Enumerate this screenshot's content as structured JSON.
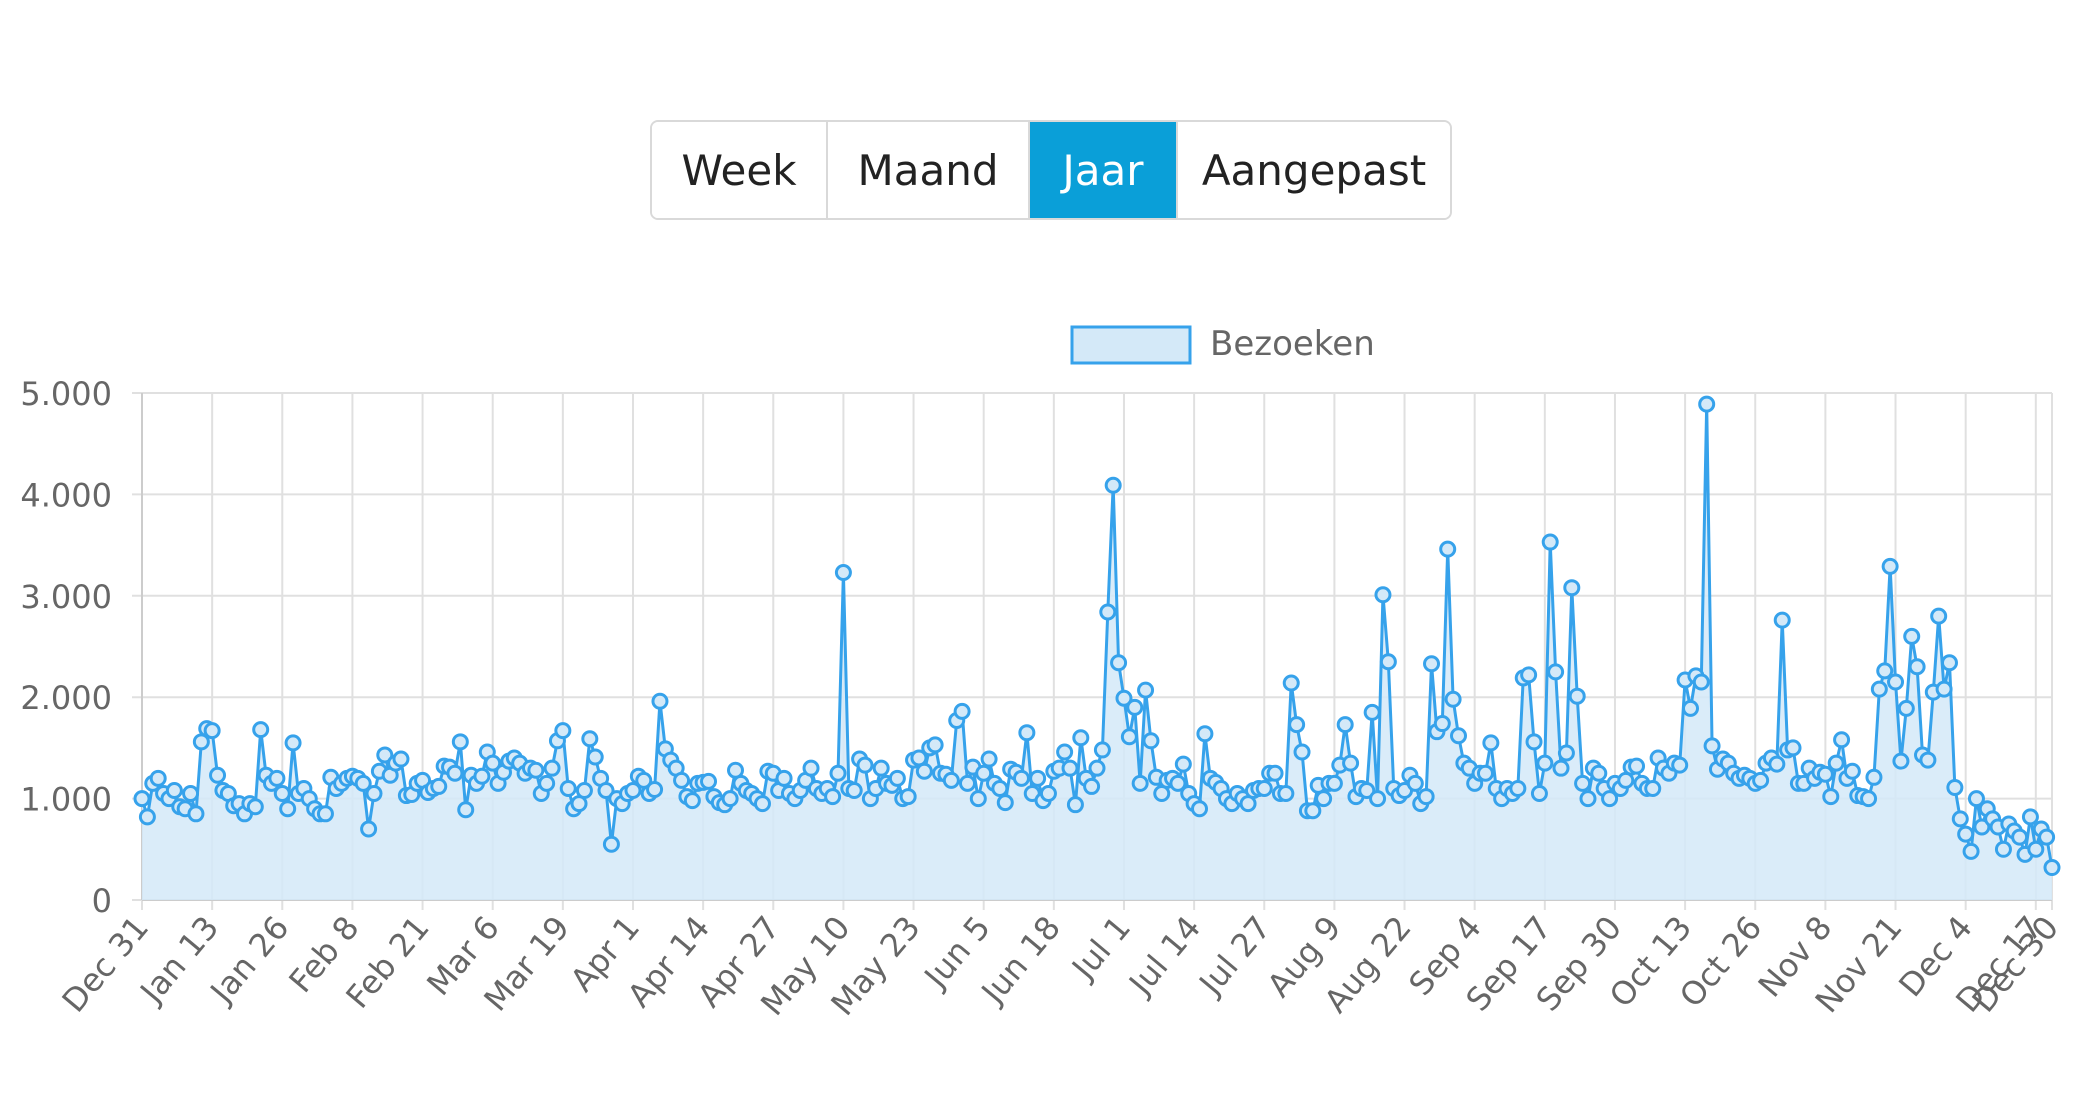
{
  "range_selector": {
    "buttons": [
      {
        "label": "Week",
        "active": false
      },
      {
        "label": "Maand",
        "active": false
      },
      {
        "label": "Jaar",
        "active": true
      },
      {
        "label": "Aangepast",
        "active": false
      }
    ],
    "active_color": "#0a9fd8"
  },
  "chart_data": {
    "type": "area",
    "title": "",
    "xlabel": "",
    "ylabel": "",
    "ylim": [
      0,
      5000
    ],
    "y_ticks": [
      0,
      1000,
      2000,
      3000,
      4000,
      5000
    ],
    "y_tick_labels": [
      "0",
      "1.000",
      "2.000",
      "3.000",
      "4.000",
      "5.000"
    ],
    "x_tick_labels": [
      "Dec 31",
      "Jan 13",
      "Jan 26",
      "Feb 8",
      "Feb 21",
      "Mar 6",
      "Mar 19",
      "Apr 1",
      "Apr 14",
      "Apr 27",
      "May 10",
      "May 23",
      "Jun 5",
      "Jun 18",
      "Jul 1",
      "Jul 14",
      "Jul 27",
      "Aug 9",
      "Aug 22",
      "Sep 4",
      "Sep 17",
      "Sep 30",
      "Oct 13",
      "Oct 26",
      "Nov 8",
      "Nov 21",
      "Dec 4",
      "Dec 17",
      "Dec 30"
    ],
    "x_tick_step_days": 13,
    "legend": {
      "label": "Bezoeken",
      "position": "top"
    },
    "colors": {
      "line": "#36a2eb",
      "fill": "#d4e9f8",
      "grid": "#e0e0e0",
      "axis_text": "#666666"
    },
    "series": [
      {
        "name": "Bezoeken",
        "values": [
          1000,
          820,
          1150,
          1200,
          1050,
          1000,
          1080,
          920,
          900,
          1050,
          850,
          1560,
          1690,
          1670,
          1230,
          1080,
          1050,
          930,
          950,
          850,
          950,
          920,
          1680,
          1230,
          1150,
          1200,
          1050,
          900,
          1550,
          1050,
          1100,
          1000,
          900,
          850,
          850,
          1210,
          1100,
          1150,
          1200,
          1220,
          1200,
          1150,
          700,
          1050,
          1270,
          1430,
          1230,
          1350,
          1390,
          1030,
          1040,
          1150,
          1180,
          1060,
          1100,
          1120,
          1320,
          1310,
          1250,
          1560,
          890,
          1230,
          1150,
          1220,
          1460,
          1350,
          1150,
          1260,
          1370,
          1400,
          1350,
          1250,
          1300,
          1280,
          1050,
          1150,
          1300,
          1570,
          1670,
          1100,
          900,
          950,
          1080,
          1590,
          1410,
          1200,
          1080,
          550,
          1000,
          950,
          1050,
          1080,
          1220,
          1180,
          1050,
          1090,
          1960,
          1490,
          1380,
          1300,
          1180,
          1020,
          980,
          1150,
          1160,
          1170,
          1020,
          960,
          940,
          1000,
          1280,
          1150,
          1080,
          1050,
          1000,
          950,
          1270,
          1250,
          1080,
          1200,
          1050,
          1000,
          1080,
          1180,
          1300,
          1100,
          1050,
          1100,
          1020,
          1250,
          3230,
          1100,
          1080,
          1390,
          1330,
          1000,
          1100,
          1300,
          1150,
          1130,
          1200,
          1000,
          1020,
          1380,
          1400,
          1270,
          1500,
          1530,
          1250,
          1240,
          1180,
          1770,
          1860,
          1150,
          1310,
          1000,
          1250,
          1390,
          1150,
          1100,
          960,
          1290,
          1260,
          1200,
          1650,
          1050,
          1200,
          980,
          1050,
          1270,
          1300,
          1460,
          1300,
          940,
          1600,
          1200,
          1120,
          1300,
          1480,
          2840,
          4090,
          2340,
          1990,
          1610,
          1900,
          1150,
          2070,
          1570,
          1210,
          1050,
          1180,
          1200,
          1150,
          1340,
          1050,
          950,
          900,
          1640,
          1200,
          1160,
          1100,
          1000,
          950,
          1050,
          1000,
          950,
          1080,
          1100,
          1100,
          1250,
          1250,
          1050,
          1050,
          2140,
          1730,
          1460,
          880,
          880,
          1130,
          1000,
          1150,
          1150,
          1330,
          1730,
          1350,
          1020,
          1100,
          1080,
          1850,
          1000,
          3010,
          2350,
          1100,
          1030,
          1080,
          1230,
          1150,
          950,
          1020,
          2330,
          1660,
          1740,
          3460,
          1980,
          1620,
          1350,
          1300,
          1150,
          1250,
          1250,
          1550,
          1100,
          1000,
          1100,
          1050,
          1100,
          2190,
          2220,
          1560,
          1050,
          1350,
          3530,
          2250,
          1300,
          1450,
          3080,
          2010,
          1150,
          1000,
          1300,
          1250,
          1100,
          1000,
          1150,
          1100,
          1180,
          1310,
          1320,
          1150,
          1100,
          1100,
          1400,
          1300,
          1250,
          1350,
          1330,
          2170,
          1890,
          2210,
          2150,
          4890,
          1520,
          1290,
          1390,
          1350,
          1250,
          1200,
          1230,
          1200,
          1150,
          1180,
          1350,
          1400,
          1340,
          2760,
          1480,
          1500,
          1150,
          1150,
          1300,
          1200,
          1260,
          1240,
          1020,
          1350,
          1580,
          1200,
          1270,
          1030,
          1020,
          1000,
          1210,
          2080,
          2260,
          3290,
          2150,
          1370,
          1890,
          2600,
          2300,
          1430,
          1380,
          2050,
          2800,
          2080,
          2340,
          1110,
          800,
          650,
          480,
          1000,
          720,
          900,
          800,
          720,
          500,
          750,
          680,
          620,
          450,
          820,
          500,
          700,
          620,
          320
        ]
      }
    ]
  }
}
